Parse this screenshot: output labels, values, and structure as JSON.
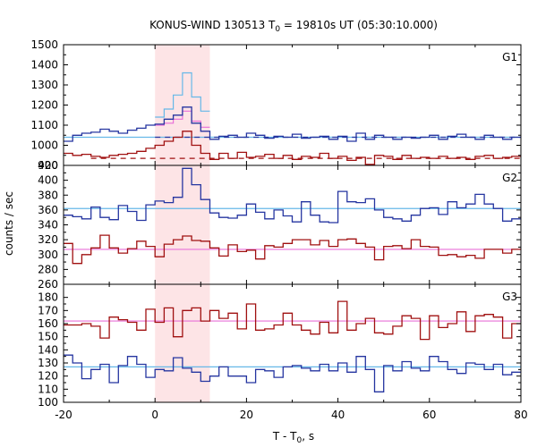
{
  "chart_data": {
    "type": "line",
    "title_prefix": "KONUS-WIND 130513 T",
    "title_sub": "0",
    "title_suffix": " = 19810s UT (05:30:10.000)",
    "xlabel_prefix": "T - T",
    "xlabel_sub": "0",
    "xlabel_suffix": ", s",
    "ylabel": "counts / sec",
    "xlim": [
      -20,
      80
    ],
    "xticks": [
      -20,
      0,
      20,
      40,
      60,
      80
    ],
    "shaded_interval": [
      0,
      12
    ],
    "colors": {
      "blue": "#2535a0",
      "red": "#a01010",
      "light_blue": "#66b8e8",
      "pink": "#e870d8",
      "shade": "#fde4e6"
    },
    "panels": [
      {
        "label": "G1",
        "ylim": [
          900,
          1500
        ],
        "yticks": [
          900,
          1000,
          1100,
          1200,
          1300,
          1400,
          1500
        ],
        "blue_bg": 1040,
        "red_bg": 935,
        "fine_x": [
          0,
          2,
          4,
          6,
          8,
          10,
          12
        ],
        "fine_lightblue": [
          1140,
          1180,
          1250,
          1360,
          1240,
          1170
        ],
        "fine_pink": [
          1100,
          1110,
          1130,
          1170,
          1120,
          1090
        ],
        "x": [
          -20,
          -18,
          -16,
          -14,
          -12,
          -10,
          -8,
          -6,
          -4,
          -2,
          0,
          2,
          4,
          6,
          8,
          10,
          12,
          14,
          16,
          18,
          20,
          22,
          24,
          26,
          28,
          30,
          32,
          34,
          36,
          38,
          40,
          42,
          44,
          46,
          48,
          50,
          52,
          54,
          56,
          58,
          60,
          62,
          64,
          66,
          68,
          70,
          72,
          74,
          76,
          78,
          80
        ],
        "blue": [
          1020,
          1050,
          1060,
          1065,
          1080,
          1070,
          1060,
          1075,
          1085,
          1100,
          1105,
          1130,
          1150,
          1190,
          1110,
          1070,
          1030,
          1045,
          1050,
          1040,
          1060,
          1050,
          1035,
          1045,
          1040,
          1055,
          1035,
          1040,
          1045,
          1030,
          1045,
          1020,
          1060,
          1030,
          1050,
          1040,
          1030,
          1040,
          1035,
          1040,
          1050,
          1030,
          1045,
          1055,
          1040,
          1030,
          1050,
          1040,
          1030,
          1040
        ],
        "red": [
          960,
          950,
          955,
          945,
          940,
          950,
          955,
          960,
          970,
          985,
          1000,
          1020,
          1040,
          1070,
          1000,
          960,
          930,
          960,
          935,
          965,
          940,
          945,
          955,
          935,
          950,
          930,
          945,
          940,
          960,
          935,
          945,
          925,
          940,
          905,
          950,
          945,
          930,
          950,
          935,
          940,
          935,
          945,
          935,
          940,
          930,
          945,
          950,
          935,
          940,
          945
        ]
      },
      {
        "label": "G2",
        "ylim": [
          260,
          420
        ],
        "yticks": [
          260,
          280,
          300,
          320,
          340,
          360,
          380,
          400,
          420
        ],
        "blue_bg": 362,
        "red_bg": 307,
        "x": [
          -20,
          -18,
          -16,
          -14,
          -12,
          -10,
          -8,
          -6,
          -4,
          -2,
          0,
          2,
          4,
          6,
          8,
          10,
          12,
          14,
          16,
          18,
          20,
          22,
          24,
          26,
          28,
          30,
          32,
          34,
          36,
          38,
          40,
          42,
          44,
          46,
          48,
          50,
          52,
          54,
          56,
          58,
          60,
          62,
          64,
          66,
          68,
          70,
          72,
          74,
          76,
          78,
          80
        ],
        "blue": [
          353,
          351,
          348,
          364,
          350,
          347,
          366,
          358,
          346,
          367,
          372,
          370,
          377,
          416,
          394,
          374,
          356,
          350,
          349,
          353,
          368,
          357,
          348,
          360,
          352,
          344,
          371,
          353,
          344,
          343,
          385,
          371,
          370,
          375,
          360,
          350,
          348,
          345,
          353,
          362,
          363,
          354,
          371,
          363,
          368,
          381,
          368,
          362,
          345,
          348
        ],
        "red": [
          315,
          288,
          300,
          309,
          326,
          309,
          302,
          308,
          318,
          311,
          297,
          314,
          320,
          325,
          319,
          318,
          309,
          298,
          313,
          304,
          306,
          294,
          312,
          310,
          315,
          320,
          320,
          313,
          319,
          311,
          320,
          321,
          315,
          310,
          293,
          311,
          312,
          308,
          320,
          311,
          310,
          299,
          300,
          297,
          299,
          295,
          307,
          307,
          302,
          307
        ]
      },
      {
        "label": "G3",
        "ylim": [
          100,
          190
        ],
        "yticks": [
          100,
          110,
          120,
          130,
          140,
          150,
          160,
          170,
          180
        ],
        "blue_bg": 127,
        "red_bg": 162,
        "x": [
          -20,
          -18,
          -16,
          -14,
          -12,
          -10,
          -8,
          -6,
          -4,
          -2,
          0,
          2,
          4,
          6,
          8,
          10,
          12,
          14,
          16,
          18,
          20,
          22,
          24,
          26,
          28,
          30,
          32,
          34,
          36,
          38,
          40,
          42,
          44,
          46,
          48,
          50,
          52,
          54,
          56,
          58,
          60,
          62,
          64,
          66,
          68,
          70,
          72,
          74,
          76,
          78,
          80
        ],
        "blue": [
          136,
          130,
          118,
          125,
          129,
          115,
          128,
          135,
          129,
          119,
          125,
          124,
          134,
          126,
          123,
          116,
          120,
          127,
          120,
          120,
          115,
          125,
          124,
          119,
          127,
          128,
          126,
          124,
          129,
          124,
          130,
          123,
          135,
          125,
          108,
          128,
          124,
          131,
          126,
          124,
          135,
          131,
          125,
          122,
          130,
          129,
          125,
          129,
          121,
          123
        ],
        "red": [
          159,
          159,
          160,
          158,
          149,
          165,
          163,
          161,
          155,
          171,
          161,
          172,
          150,
          170,
          172,
          162,
          170,
          164,
          168,
          156,
          175,
          155,
          156,
          159,
          168,
          159,
          155,
          152,
          161,
          153,
          177,
          155,
          160,
          164,
          153,
          152,
          158,
          166,
          164,
          148,
          166,
          157,
          160,
          169,
          154,
          166,
          167,
          165,
          149,
          160
        ]
      }
    ]
  }
}
